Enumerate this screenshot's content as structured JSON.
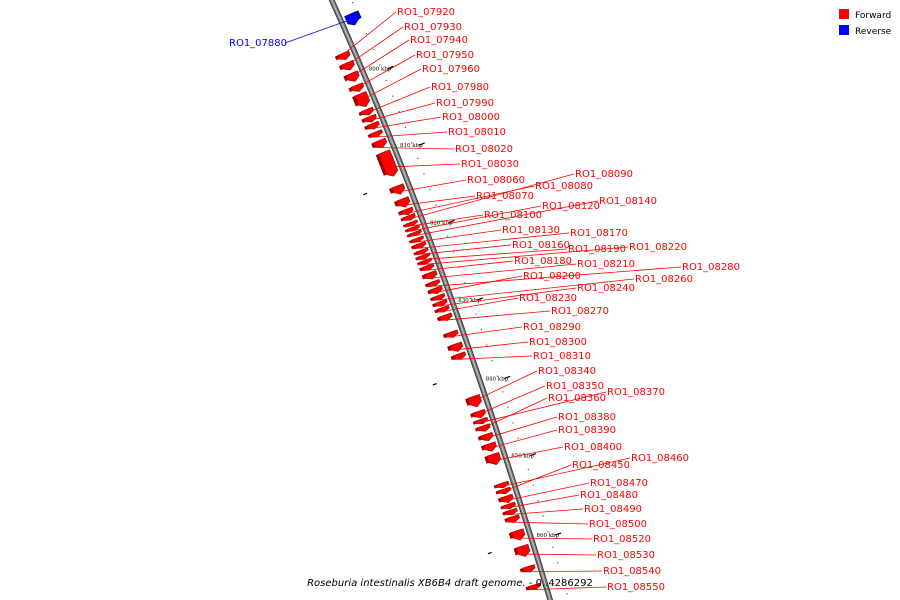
{
  "colors": {
    "forward": "#ff0000",
    "reverse": "#0000ff",
    "backbone": "#7f7f7f",
    "tick": "#000000"
  },
  "legend": [
    {
      "label": "Forward",
      "color": "#ff0000"
    },
    {
      "label": "Reverse",
      "color": "#0000ff"
    }
  ],
  "caption": {
    "organism": "Roseburia intestinalis XB6B4 draft genome.",
    "range": " - 0..4286292"
  },
  "ticks": [
    "800 kbp",
    "810 kbp",
    "820 kbp",
    "830 kbp",
    "840 kbp",
    "850 kbp",
    "860 kbp"
  ],
  "genes": [
    {
      "id": "RO1_07880",
      "strand": "reverse"
    },
    {
      "id": "RO1_07920",
      "strand": "forward"
    },
    {
      "id": "RO1_07930",
      "strand": "forward"
    },
    {
      "id": "RO1_07940",
      "strand": "forward"
    },
    {
      "id": "RO1_07950",
      "strand": "forward"
    },
    {
      "id": "RO1_07960",
      "strand": "forward"
    },
    {
      "id": "RO1_07980",
      "strand": "forward"
    },
    {
      "id": "RO1_07990",
      "strand": "forward"
    },
    {
      "id": "RO1_08000",
      "strand": "forward"
    },
    {
      "id": "RO1_08010",
      "strand": "forward"
    },
    {
      "id": "RO1_08020",
      "strand": "forward"
    },
    {
      "id": "RO1_08030",
      "strand": "forward"
    },
    {
      "id": "RO1_08060",
      "strand": "forward"
    },
    {
      "id": "RO1_08070",
      "strand": "forward"
    },
    {
      "id": "RO1_08080",
      "strand": "forward"
    },
    {
      "id": "RO1_08090",
      "strand": "forward"
    },
    {
      "id": "RO1_08100",
      "strand": "forward"
    },
    {
      "id": "RO1_08120",
      "strand": "forward"
    },
    {
      "id": "RO1_08140",
      "strand": "forward"
    },
    {
      "id": "RO1_08130",
      "strand": "forward"
    },
    {
      "id": "RO1_08170",
      "strand": "forward"
    },
    {
      "id": "RO1_08160",
      "strand": "forward"
    },
    {
      "id": "RO1_08190",
      "strand": "forward"
    },
    {
      "id": "RO1_08220",
      "strand": "forward"
    },
    {
      "id": "RO1_08180",
      "strand": "forward"
    },
    {
      "id": "RO1_08210",
      "strand": "forward"
    },
    {
      "id": "RO1_08280",
      "strand": "forward"
    },
    {
      "id": "RO1_08200",
      "strand": "forward"
    },
    {
      "id": "RO1_08260",
      "strand": "forward"
    },
    {
      "id": "RO1_08240",
      "strand": "forward"
    },
    {
      "id": "RO1_08230",
      "strand": "forward"
    },
    {
      "id": "RO1_08270",
      "strand": "forward"
    },
    {
      "id": "RO1_08290",
      "strand": "forward"
    },
    {
      "id": "RO1_08300",
      "strand": "forward"
    },
    {
      "id": "RO1_08310",
      "strand": "forward"
    },
    {
      "id": "RO1_08340",
      "strand": "forward"
    },
    {
      "id": "RO1_08350",
      "strand": "forward"
    },
    {
      "id": "RO1_08370",
      "strand": "forward"
    },
    {
      "id": "RO1_08360",
      "strand": "forward"
    },
    {
      "id": "RO1_08380",
      "strand": "forward"
    },
    {
      "id": "RO1_08390",
      "strand": "forward"
    },
    {
      "id": "RO1_08400",
      "strand": "forward"
    },
    {
      "id": "RO1_08460",
      "strand": "forward"
    },
    {
      "id": "RO1_08450",
      "strand": "forward"
    },
    {
      "id": "RO1_08470",
      "strand": "forward"
    },
    {
      "id": "RO1_08480",
      "strand": "forward"
    },
    {
      "id": "RO1_08490",
      "strand": "forward"
    },
    {
      "id": "RO1_08500",
      "strand": "forward"
    },
    {
      "id": "RO1_08520",
      "strand": "forward"
    },
    {
      "id": "RO1_08530",
      "strand": "forward"
    },
    {
      "id": "RO1_08540",
      "strand": "forward"
    },
    {
      "id": "RO1_08550",
      "strand": "forward"
    }
  ]
}
